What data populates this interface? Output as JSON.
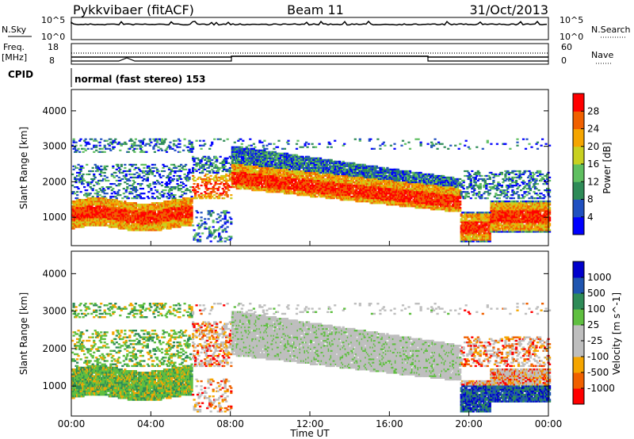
{
  "header": {
    "station": "Pykkvibaer (fitACF)",
    "beam": "Beam 11",
    "date": "31/Oct/2013"
  },
  "strip1": {
    "left_label": "N.Sky",
    "right_label": "N.Search",
    "left_ticks": [
      "10^5",
      "10^0"
    ],
    "right_ticks": [
      "10^5",
      "10^0"
    ]
  },
  "strip2": {
    "left_label_top": "Freq.",
    "left_label_bottom": "[MHz]",
    "right_label": "Nave",
    "left_ticks": [
      "18",
      "8"
    ],
    "right_ticks": [
      "60",
      "0"
    ]
  },
  "cpid": {
    "label": "CPID",
    "mode": "normal (fast stereo) 153"
  },
  "colors": {
    "power": [
      "#0000ff",
      "#2050c0",
      "#2e8b57",
      "#5fbf60",
      "#c8d020",
      "#f5a500",
      "#f06000",
      "#ff0000"
    ],
    "velocity": [
      "#ff0000",
      "#f06000",
      "#f5a500",
      "#bebebe",
      "#bebebe",
      "#5fbf40",
      "#2e8b57",
      "#1f55b0",
      "#0000cc"
    ]
  },
  "chart_data": [
    {
      "type": "heatmap",
      "name": "power",
      "ylabel": "Slant Range [km]",
      "ylim": [
        200,
        4600
      ],
      "yticks": [
        "1000",
        "2000",
        "3000",
        "4000"
      ],
      "colorbar_label": "Power [dB]",
      "colorbar_ticks": [
        "4",
        "8",
        "12",
        "16",
        "20",
        "24",
        "28"
      ],
      "colorbar_range": [
        0,
        32
      ]
    },
    {
      "type": "heatmap",
      "name": "velocity",
      "ylabel": "Slant Range [km]",
      "ylim": [
        200,
        4600
      ],
      "yticks": [
        "1000",
        "2000",
        "3000",
        "4000"
      ],
      "colorbar_label": "Velocity [m s^-1]",
      "colorbar_ticks": [
        "1000",
        "500",
        "100",
        "25",
        "-25",
        "-100",
        "-500",
        "-1000"
      ]
    }
  ],
  "xaxis": {
    "label": "Time UT",
    "ticks": [
      "00:00",
      "04:00",
      "08:00",
      "12:00",
      "16:00",
      "20:00",
      "00:00"
    ]
  }
}
